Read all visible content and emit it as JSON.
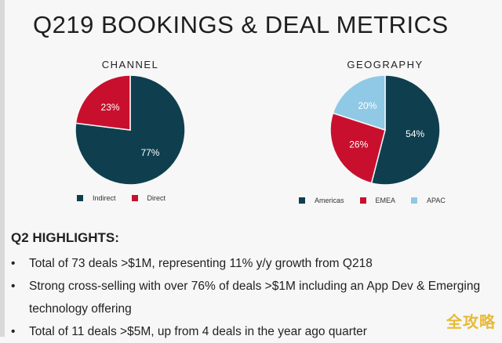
{
  "title": "Q219 BOOKINGS & DEAL METRICS",
  "chart_data": [
    {
      "type": "pie",
      "title": "CHANNEL",
      "categories": [
        "Indirect",
        "Direct"
      ],
      "values": [
        77,
        23
      ],
      "labels": [
        "77%",
        "23%"
      ],
      "colors": [
        "#0f3f4f",
        "#c8102e"
      ],
      "label_colors": [
        "#ffffff",
        "#ffffff"
      ],
      "legend": "bottom"
    },
    {
      "type": "pie",
      "title": "GEOGRAPHY",
      "categories": [
        "Americas",
        "EMEA",
        "APAC"
      ],
      "values": [
        54,
        26,
        20
      ],
      "labels": [
        "54%",
        "26%",
        "20%"
      ],
      "colors": [
        "#0f3f4f",
        "#c8102e",
        "#8fc9e6"
      ],
      "label_colors": [
        "#ffffff",
        "#ffffff",
        "#ffffff"
      ],
      "legend": "bottom"
    }
  ],
  "highlights": {
    "title": "Q2 HIGHLIGHTS:",
    "items": [
      "Total of 73 deals >$1M, representing 11% y/y growth from Q218",
      "Strong cross-selling with over 76% of deals >$1M including an App Dev & Emerging technology offering",
      "Total of 11 deals >$5M, up from 4 deals in the year ago quarter"
    ]
  },
  "watermark": "全攻略"
}
